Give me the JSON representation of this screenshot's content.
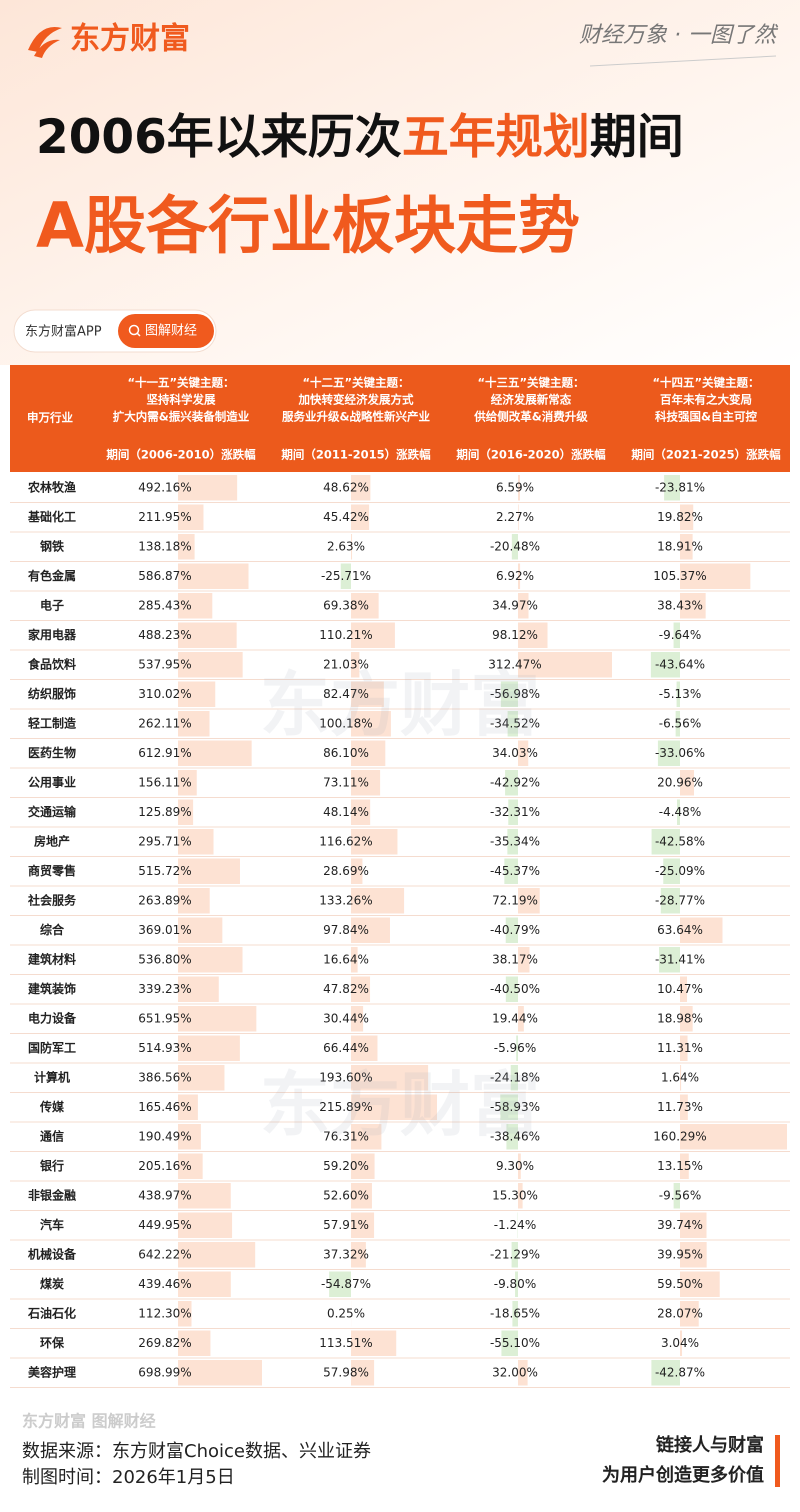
{
  "header": {
    "logo": "东方财富",
    "slogan": "财经万象 · 一图了然",
    "title_parts": [
      "2006年以来历次",
      "五年规划",
      "期间"
    ],
    "subtitle": "A股各行业板块走势"
  },
  "tag": {
    "app": "东方财富APP",
    "button": "图解财经"
  },
  "watermark": "东方财富",
  "table": {
    "corner": "申万行业",
    "columns": [
      {
        "heading": "“十一五”关键主题：",
        "lines": [
          "坚持科学发展",
          "扩大内需&振兴装备制造业"
        ],
        "period": "期间（2006-2010）涨跌幅"
      },
      {
        "heading": "“十二五”关键主题：",
        "lines": [
          "加快转变经济发展方式",
          "服务业升级&战略性新兴产业"
        ],
        "period": "期间（2011-2015）涨跌幅"
      },
      {
        "heading": "“十三五”关键主题：",
        "lines": [
          "经济发展新常态",
          "供给侧改革&消费升级"
        ],
        "period": "期间（2016-2020）涨跌幅"
      },
      {
        "heading": "“十四五”关键主题：",
        "lines": [
          "百年未有之大变局",
          "科技强国&自主可控"
        ],
        "period": "期间（2021-2025）涨跌幅"
      }
    ],
    "rows": [
      [
        "农林牧渔",
        "492.16%",
        "48.62%",
        "6.59%",
        "-23.81%"
      ],
      [
        "基础化工",
        "211.95%",
        "45.42%",
        "2.27%",
        "19.82%"
      ],
      [
        "钢铁",
        "138.18%",
        "2.63%",
        "-20.48%",
        "18.91%"
      ],
      [
        "有色金属",
        "586.87%",
        "-25.71%",
        "6.92%",
        "105.37%"
      ],
      [
        "电子",
        "285.43%",
        "69.38%",
        "34.97%",
        "38.43%"
      ],
      [
        "家用电器",
        "488.23%",
        "110.21%",
        "98.12%",
        "-9.64%"
      ],
      [
        "食品饮料",
        "537.95%",
        "21.03%",
        "312.47%",
        "-43.64%"
      ],
      [
        "纺织服饰",
        "310.02%",
        "82.47%",
        "-56.98%",
        "-5.13%"
      ],
      [
        "轻工制造",
        "262.11%",
        "100.18%",
        "-34.52%",
        "-6.56%"
      ],
      [
        "医药生物",
        "612.91%",
        "86.10%",
        "34.03%",
        "-33.06%"
      ],
      [
        "公用事业",
        "156.11%",
        "73.11%",
        "-42.92%",
        "20.96%"
      ],
      [
        "交通运输",
        "125.89%",
        "48.14%",
        "-32.31%",
        "-4.48%"
      ],
      [
        "房地产",
        "295.71%",
        "116.62%",
        "-35.34%",
        "-42.58%"
      ],
      [
        "商贸零售",
        "515.72%",
        "28.69%",
        "-45.37%",
        "-25.09%"
      ],
      [
        "社会服务",
        "263.89%",
        "133.26%",
        "72.19%",
        "-28.77%"
      ],
      [
        "综合",
        "369.01%",
        "97.84%",
        "-40.79%",
        "63.64%"
      ],
      [
        "建筑材料",
        "536.80%",
        "16.64%",
        "38.17%",
        "-31.41%"
      ],
      [
        "建筑装饰",
        "339.23%",
        "47.82%",
        "-40.50%",
        "10.47%"
      ],
      [
        "电力设备",
        "651.95%",
        "30.44%",
        "19.44%",
        "18.98%"
      ],
      [
        "国防军工",
        "514.93%",
        "66.44%",
        "-5.96%",
        "11.31%"
      ],
      [
        "计算机",
        "386.56%",
        "193.60%",
        "-24.18%",
        "1.64%"
      ],
      [
        "传媒",
        "165.46%",
        "215.89%",
        "-58.93%",
        "11.73%"
      ],
      [
        "通信",
        "190.49%",
        "76.31%",
        "-38.46%",
        "160.29%"
      ],
      [
        "银行",
        "205.16%",
        "59.20%",
        "9.30%",
        "13.15%"
      ],
      [
        "非银金融",
        "438.97%",
        "52.60%",
        "15.30%",
        "-9.56%"
      ],
      [
        "汽车",
        "449.95%",
        "57.91%",
        "-1.24%",
        "39.74%"
      ],
      [
        "机械设备",
        "642.22%",
        "37.32%",
        "-21.29%",
        "39.95%"
      ],
      [
        "煤炭",
        "439.46%",
        "-54.87%",
        "-9.80%",
        "59.50%"
      ],
      [
        "石油石化",
        "112.30%",
        "0.25%",
        "-18.65%",
        "28.07%"
      ],
      [
        "环保",
        "269.82%",
        "113.51%",
        "-55.10%",
        "3.04%"
      ],
      [
        "美容护理",
        "698.99%",
        "57.98%",
        "32.00%",
        "-42.87%"
      ]
    ]
  },
  "footer": {
    "brand": "东方财富 图解财经",
    "source": "数据来源：东方财富Choice数据、兴业证券",
    "date": "制图时间：2026年1月5日",
    "motto": [
      "链接人与财富",
      "为用户创造更多价值"
    ]
  }
}
